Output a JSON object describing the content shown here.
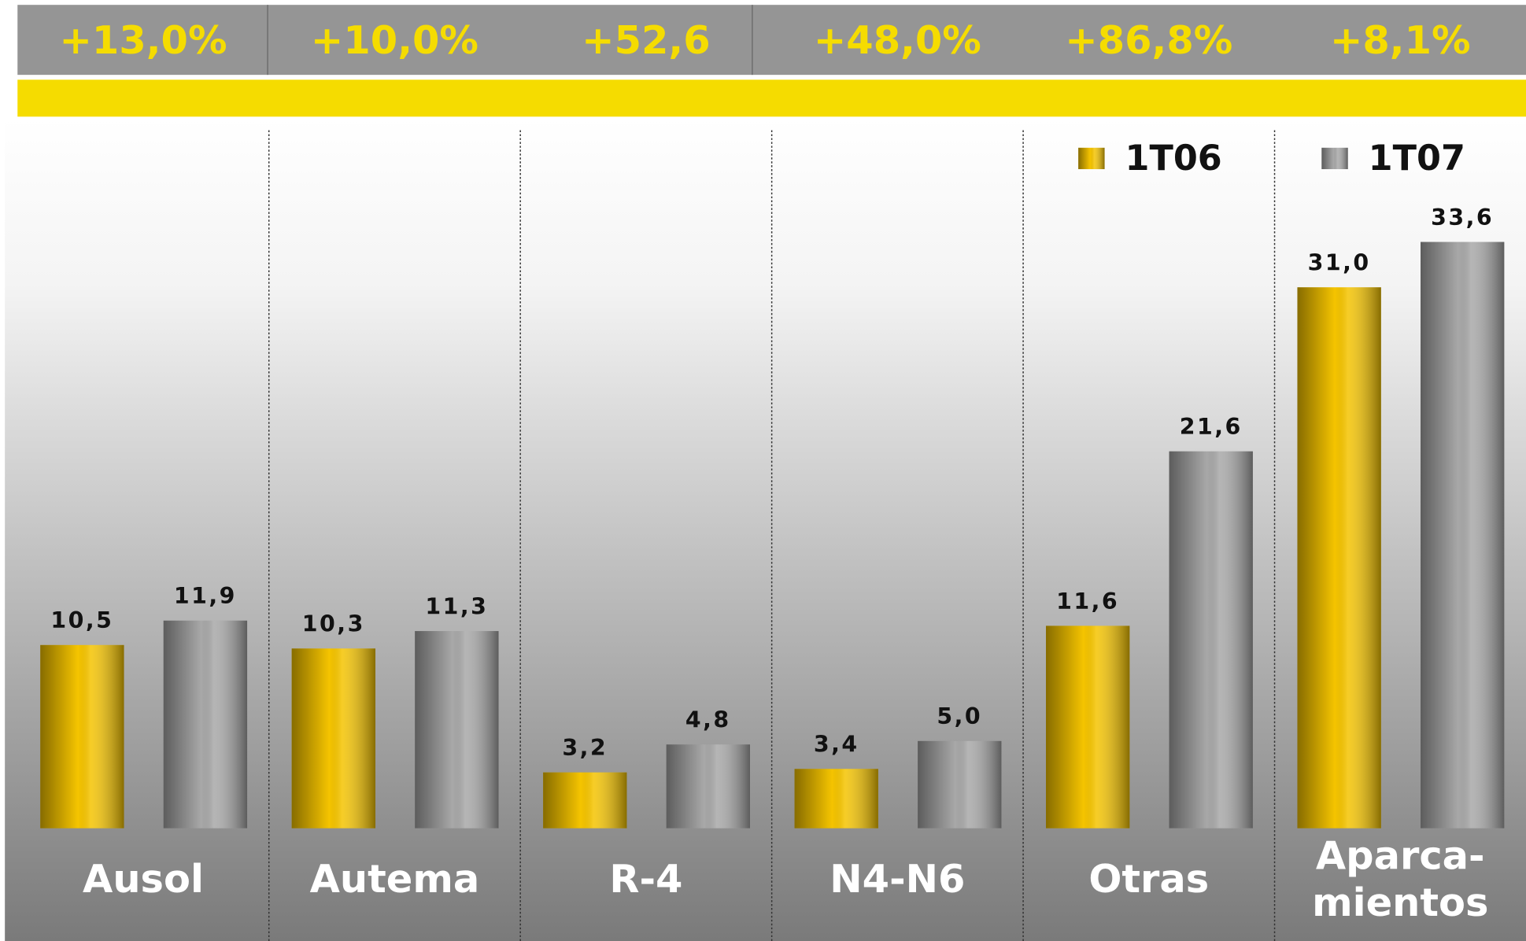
{
  "chart_data": {
    "type": "bar",
    "annotations": [
      "+13,0%",
      "+10,0%",
      "+52,6",
      "+48,0%",
      "+86,8%",
      "+8,1%"
    ],
    "categories": [
      "Ausol",
      "Autema",
      "R-4",
      "N4-N6",
      "Otras",
      "Aparca-mientos"
    ],
    "series": [
      {
        "name": "1T06",
        "color": "#f5c400",
        "values": [
          10.5,
          10.3,
          3.2,
          3.4,
          11.6,
          31.0
        ],
        "value_labels": [
          "10,5",
          "10,3",
          "3,2",
          "3,4",
          "11,6",
          "31,0"
        ]
      },
      {
        "name": "1T07",
        "color": "#a8a8a8",
        "values": [
          11.9,
          11.3,
          4.8,
          5.0,
          21.6,
          33.6
        ],
        "value_labels": [
          "11,9",
          "11,3",
          "4,8",
          "5,0",
          "21,6",
          "33,6"
        ]
      }
    ],
    "ylim": [
      0,
      40
    ],
    "legend": "top-right"
  }
}
